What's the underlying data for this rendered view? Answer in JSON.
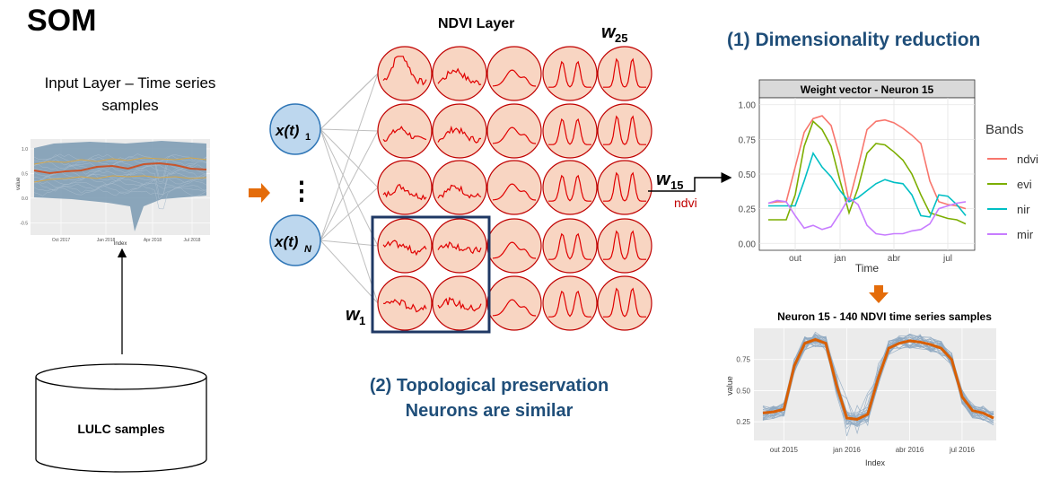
{
  "title": "SOM",
  "input_layer": {
    "title": "Input Layer – Time series samples",
    "chart": {
      "ylabel": "value",
      "xlabel": "Index",
      "yticks": [
        "1.0",
        "0.5",
        "0.0",
        "-0.5"
      ],
      "xticks": [
        "Oct 2017",
        "Jan 2018",
        "Apr 2018",
        "Jul 2018"
      ]
    }
  },
  "database": {
    "label": "LULC samples"
  },
  "input_nodes": {
    "top": "x(t)",
    "top_sub": "1",
    "bottom": "x(t)",
    "bottom_sub": "N",
    "dots": "⋮"
  },
  "ndvi_layer": {
    "title": "NDVI Layer"
  },
  "weights": {
    "w25": {
      "base": "w",
      "sub": "25"
    },
    "w15": {
      "base": "w",
      "sub": "15"
    },
    "w1": {
      "base": "w",
      "sub": "1"
    },
    "w15_tag": "ndvi"
  },
  "dimensionality_reduction": {
    "title": "(1) Dimensionality reduction"
  },
  "topological": {
    "line1": "(2) Topological preservation",
    "line2": "Neurons are similar"
  },
  "colors": {
    "neuron_fill": "#f8d5c2",
    "neuron_stroke": "#c00000",
    "curve": "#e00000",
    "blue_title": "#1f4e79",
    "node_fill": "#bdd7ee",
    "node_stroke": "#2e75b6",
    "arrow_orange": "#e46c0a",
    "highlight_box": "#1f3864"
  },
  "chart_data": [
    {
      "type": "line",
      "title": "Weight vector - Neuron 15",
      "xlabel": "Time",
      "ylabel": "",
      "legend_title": "Bands",
      "legend_position": "right",
      "x_ticks": [
        "out",
        "jan",
        "abr",
        "jul"
      ],
      "ylim": [
        0,
        1
      ],
      "yticks": [
        "0.00",
        "0.25",
        "0.50",
        "0.75",
        "1.00"
      ],
      "x_index": [
        1,
        2,
        3,
        4,
        5,
        6,
        7,
        8,
        9,
        10,
        11,
        12,
        13,
        14,
        15,
        16,
        17,
        18,
        19,
        20,
        21,
        22,
        23
      ],
      "series": [
        {
          "name": "ndvi",
          "color": "#f8766d",
          "values": [
            0.29,
            0.3,
            0.3,
            0.55,
            0.8,
            0.9,
            0.92,
            0.85,
            0.62,
            0.3,
            0.55,
            0.82,
            0.88,
            0.89,
            0.87,
            0.83,
            0.78,
            0.72,
            0.45,
            0.3,
            0.28,
            0.27,
            0.25
          ]
        },
        {
          "name": "evi",
          "color": "#7cae00",
          "values": [
            0.17,
            0.17,
            0.17,
            0.35,
            0.7,
            0.88,
            0.82,
            0.7,
            0.45,
            0.22,
            0.4,
            0.65,
            0.72,
            0.71,
            0.66,
            0.6,
            0.5,
            0.35,
            0.22,
            0.2,
            0.18,
            0.17,
            0.14
          ]
        },
        {
          "name": "nir",
          "color": "#00bfc4",
          "values": [
            0.27,
            0.27,
            0.27,
            0.27,
            0.45,
            0.65,
            0.55,
            0.48,
            0.38,
            0.3,
            0.33,
            0.38,
            0.43,
            0.46,
            0.44,
            0.43,
            0.35,
            0.2,
            0.19,
            0.35,
            0.34,
            0.28,
            0.2
          ]
        },
        {
          "name": "mir",
          "color": "#c77cff",
          "values": [
            0.29,
            0.31,
            0.3,
            0.2,
            0.11,
            0.13,
            0.1,
            0.12,
            0.22,
            0.33,
            0.28,
            0.13,
            0.07,
            0.06,
            0.07,
            0.07,
            0.09,
            0.1,
            0.14,
            0.25,
            0.27,
            0.29,
            0.3
          ]
        }
      ]
    },
    {
      "type": "line",
      "title": "Neuron 15 - 140  NDVI time series samples",
      "xlabel": "Index",
      "ylabel": "value",
      "x_ticks": [
        "out 2015",
        "jan 2016",
        "abr 2016",
        "jul 2016"
      ],
      "yticks": [
        "0.25",
        "0.50",
        "0.75"
      ],
      "ylim": [
        0.1,
        1.0
      ],
      "series": [
        {
          "name": "median",
          "color": "#d95f02",
          "values": [
            0.32,
            0.33,
            0.35,
            0.7,
            0.88,
            0.91,
            0.88,
            0.55,
            0.28,
            0.27,
            0.31,
            0.6,
            0.84,
            0.88,
            0.9,
            0.89,
            0.87,
            0.84,
            0.75,
            0.45,
            0.34,
            0.32,
            0.28
          ]
        }
      ]
    }
  ]
}
